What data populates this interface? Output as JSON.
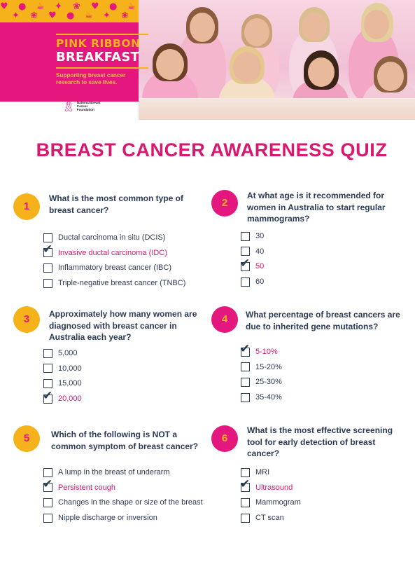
{
  "banner": {
    "brand_line1": "PINK RIBBON",
    "brand_line2": "BREAKFAST",
    "tagline": "Supporting breast cancer research to save lives.",
    "foundation": "National Breast Cancer Foundation",
    "colors": {
      "pink": "#e3177e",
      "yellow": "#f6b21a"
    }
  },
  "title": "BREAST CANCER AWARENESS QUIZ",
  "questions": [
    {
      "number": "1",
      "text": "What is the most common type of breast cancer?",
      "options": [
        {
          "label": "Ductal carcinoma in situ (DCIS)",
          "checked": false
        },
        {
          "label": "Invasive ductal carcinoma (IDC)",
          "checked": true
        },
        {
          "label": "Inflammatory breast cancer (IBC)",
          "checked": false
        },
        {
          "label": "Triple-negative breast cancer (TNBC)",
          "checked": false
        }
      ]
    },
    {
      "number": "2",
      "text": "At what age is it recommended for women in Australia to start regular mammograms?",
      "options": [
        {
          "label": "30",
          "checked": false
        },
        {
          "label": "40",
          "checked": false
        },
        {
          "label": "50",
          "checked": true
        },
        {
          "label": "60",
          "checked": false
        }
      ]
    },
    {
      "number": "3",
      "text": "Approximately how many women are diagnosed with breast cancer in Australia each year?",
      "options": [
        {
          "label": "5,000",
          "checked": false
        },
        {
          "label": "10,000",
          "checked": false
        },
        {
          "label": "15,000",
          "checked": false
        },
        {
          "label": "20,000",
          "checked": true
        }
      ]
    },
    {
      "number": "4",
      "text": "What percentage of breast cancers are due to inherited gene mutations?",
      "options": [
        {
          "label": "5-10%",
          "checked": true
        },
        {
          "label": "15-20%",
          "checked": false
        },
        {
          "label": "25-30%",
          "checked": false
        },
        {
          "label": "35-40%",
          "checked": false
        }
      ]
    },
    {
      "number": "5",
      "text": "Which of the following is NOT a common symptom of breast cancer?",
      "options": [
        {
          "label": "A lump in the breast of underarm",
          "checked": false
        },
        {
          "label": "Persistent cough",
          "checked": true
        },
        {
          "label": "Changes in the shape or size of the breast",
          "checked": false
        },
        {
          "label": "Nipple discharge or inversion",
          "checked": false
        }
      ]
    },
    {
      "number": "6",
      "text": "What is the most effective screening tool for early detection of breast cancer?",
      "options": [
        {
          "label": "MRI",
          "checked": false
        },
        {
          "label": "Ultrasound",
          "checked": true
        },
        {
          "label": "Mammogram",
          "checked": false
        },
        {
          "label": "CT scan",
          "checked": false
        }
      ]
    }
  ]
}
